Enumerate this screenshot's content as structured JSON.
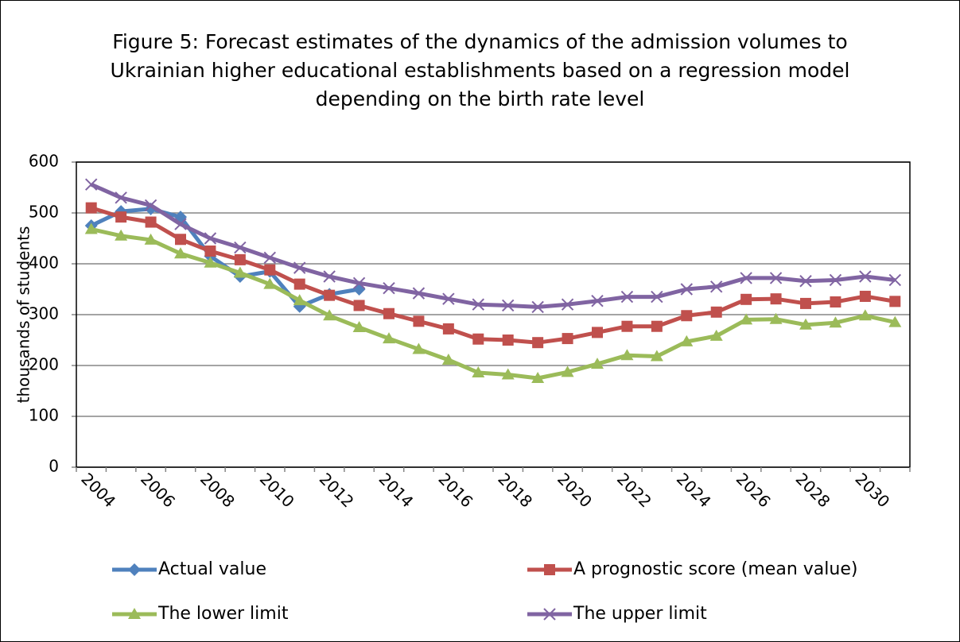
{
  "chart_data": {
    "type": "line",
    "title": "Figure 5: Forecast estimates of the dynamics of the admission volumes to Ukrainian higher educational establishments based on a regression model depending on the birth rate level",
    "y_label": "thousands of students",
    "categories": [
      "2004",
      null,
      "2006",
      null,
      "2008",
      null,
      "2010",
      null,
      "2012",
      null,
      "2014",
      null,
      "2016",
      null,
      "2018",
      null,
      "2020",
      null,
      "2022",
      null,
      "2024",
      null,
      "2026",
      null,
      "2028",
      null,
      "2030",
      null
    ],
    "series": [
      {
        "name": "Actual value",
        "color": "#4f81bd",
        "marker": "diamond",
        "values": [
          475,
          503,
          508,
          492,
          415,
          375,
          385,
          316,
          340,
          350,
          null,
          null,
          null,
          null,
          null,
          null,
          null,
          null,
          null,
          null,
          null,
          null,
          null,
          null,
          null,
          null,
          null,
          null
        ]
      },
      {
        "name": "A prognostic score (mean value)",
        "color": "#c0504d",
        "marker": "square",
        "values": [
          510,
          492,
          482,
          448,
          425,
          408,
          388,
          360,
          338,
          318,
          302,
          287,
          272,
          252,
          250,
          245,
          253,
          265,
          277,
          277,
          298,
          305,
          330,
          331,
          322,
          325,
          336,
          326
        ]
      },
      {
        "name": "The lower limit",
        "color": "#9bbb59",
        "marker": "triangle",
        "values": [
          468,
          455,
          447,
          420,
          402,
          382,
          360,
          328,
          298,
          275,
          253,
          232,
          211,
          186,
          182,
          175,
          187,
          203,
          220,
          218,
          247,
          258,
          290,
          291,
          280,
          284,
          298,
          285
        ]
      },
      {
        "name": "The upper limit",
        "color": "#8064a2",
        "marker": "x",
        "values": [
          556,
          530,
          515,
          478,
          450,
          432,
          412,
          392,
          375,
          362,
          352,
          342,
          331,
          320,
          318,
          315,
          320,
          327,
          335,
          335,
          350,
          355,
          372,
          372,
          366,
          368,
          375,
          368
        ]
      }
    ],
    "ylim": [
      0,
      600
    ],
    "yticks": [
      0,
      100,
      200,
      300,
      400,
      500,
      600
    ],
    "grid": true
  }
}
